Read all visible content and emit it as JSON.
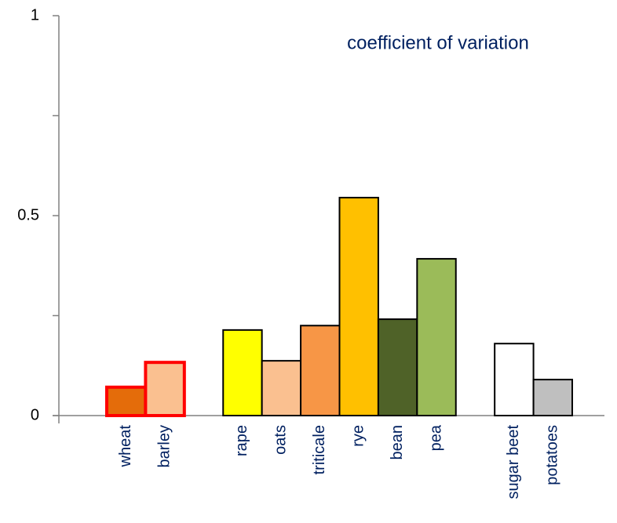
{
  "chart_data": {
    "type": "bar",
    "annotation": "coefficient of variation",
    "categories": [
      "wheat",
      "barley",
      null,
      "rape",
      "oats",
      "triticale",
      "rye",
      "bean",
      "pea",
      null,
      "sugar beet",
      "potatoes"
    ],
    "values": [
      0.071,
      0.133,
      null,
      0.214,
      0.137,
      0.225,
      0.545,
      0.241,
      0.392,
      null,
      0.18,
      0.09
    ],
    "colors": [
      "#e46c0a",
      "#fac090",
      null,
      "#ffff00",
      "#fac090",
      "#f79646",
      "#ffc000",
      "#4f6228",
      "#9bbb59",
      null,
      "#ffffff",
      "#bfbfbf"
    ],
    "edgecolors": [
      "#ff0000",
      "#ff0000",
      null,
      "#000000",
      "#000000",
      "#000000",
      "#000000",
      "#000000",
      "#000000",
      null,
      "#000000",
      "#000000"
    ],
    "ylim": [
      0,
      1
    ],
    "yticks": [
      0,
      0.5,
      1
    ],
    "minor_yticks": [
      0.25,
      0.75
    ],
    "grid": false
  }
}
